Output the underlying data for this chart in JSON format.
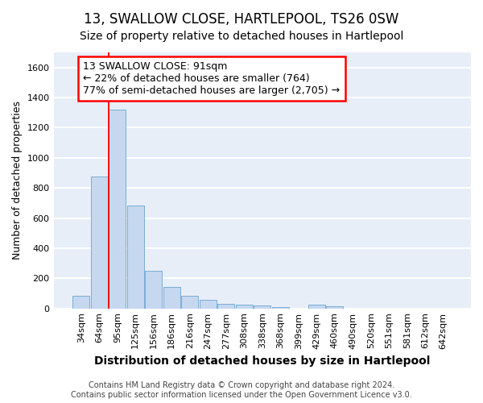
{
  "title": "13, SWALLOW CLOSE, HARTLEPOOL, TS26 0SW",
  "subtitle": "Size of property relative to detached houses in Hartlepool",
  "xlabel": "Distribution of detached houses by size in Hartlepool",
  "ylabel": "Number of detached properties",
  "footer_line1": "Contains HM Land Registry data © Crown copyright and database right 2024.",
  "footer_line2": "Contains public sector information licensed under the Open Government Licence v3.0.",
  "categories": [
    "34sqm",
    "64sqm",
    "95sqm",
    "125sqm",
    "156sqm",
    "186sqm",
    "216sqm",
    "247sqm",
    "277sqm",
    "308sqm",
    "338sqm",
    "368sqm",
    "399sqm",
    "429sqm",
    "460sqm",
    "490sqm",
    "520sqm",
    "551sqm",
    "581sqm",
    "612sqm",
    "642sqm"
  ],
  "values": [
    85,
    875,
    1320,
    685,
    250,
    143,
    85,
    55,
    30,
    25,
    18,
    10,
    0,
    25,
    15,
    0,
    0,
    0,
    0,
    0,
    0
  ],
  "bar_color": "#c5d8f0",
  "bar_edgecolor": "#7aadd4",
  "annotation_text_line1": "13 SWALLOW CLOSE: 91sqm",
  "annotation_text_line2": "← 22% of detached houses are smaller (764)",
  "annotation_text_line3": "77% of semi-detached houses are larger (2,705) →",
  "red_line_x": 2.0,
  "ylim": [
    0,
    1700
  ],
  "yticks": [
    0,
    200,
    400,
    600,
    800,
    1000,
    1200,
    1400,
    1600
  ],
  "background_color": "#e8eef8",
  "grid_color": "#ffffff",
  "title_fontsize": 12,
  "subtitle_fontsize": 10,
  "xlabel_fontsize": 10,
  "ylabel_fontsize": 9,
  "tick_fontsize": 8,
  "footer_fontsize": 7,
  "annot_fontsize": 9
}
